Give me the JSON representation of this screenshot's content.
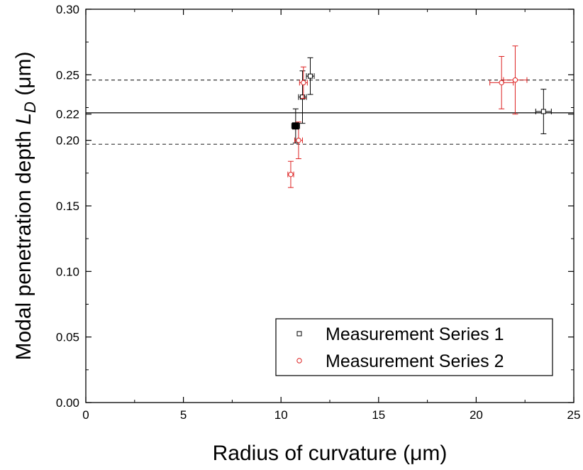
{
  "chart_data": {
    "type": "scatter",
    "xlabel": "Radius of curvature (μm)",
    "ylabel_main": "Modal penetration depth ",
    "ylabel_symbol": "L",
    "ylabel_subscript": "D",
    "ylabel_unit": " (μm)",
    "xlim": [
      0,
      25
    ],
    "ylim": [
      0,
      0.3
    ],
    "x_ticks": [
      0,
      5,
      10,
      15,
      20,
      25
    ],
    "x_tick_labels": [
      "0",
      "5",
      "10",
      "15",
      "20",
      "25"
    ],
    "y_ticks": [
      0.0,
      0.05,
      0.1,
      0.15,
      0.2,
      0.22,
      0.25,
      0.3
    ],
    "y_tick_labels": [
      "0.00",
      "0.05",
      "0.10",
      "0.15",
      "0.20",
      "0.22",
      "0.25",
      "0.30"
    ],
    "mean_line": 0.221,
    "dashed_lines": [
      0.197,
      0.246
    ],
    "grid": false,
    "legend_position": "bottom-right",
    "series": [
      {
        "name": "Measurement Series 1",
        "color": "#000000",
        "marker": "square",
        "points": [
          {
            "x": 10.75,
            "y": 0.211,
            "xerr": 0.2,
            "yerr": 0.013
          },
          {
            "x": 11.1,
            "y": 0.233,
            "xerr": 0.2,
            "yerr": 0.02
          },
          {
            "x": 11.5,
            "y": 0.249,
            "xerr": 0.2,
            "yerr": 0.014
          },
          {
            "x": 23.45,
            "y": 0.222,
            "xerr": 0.4,
            "yerr": 0.017
          }
        ]
      },
      {
        "name": "Measurement Series 2",
        "color": "#dd2222",
        "marker": "circle",
        "points": [
          {
            "x": 10.5,
            "y": 0.174,
            "xerr": 0.15,
            "yerr": 0.01
          },
          {
            "x": 10.9,
            "y": 0.2,
            "xerr": 0.2,
            "yerr": 0.014
          },
          {
            "x": 11.15,
            "y": 0.244,
            "xerr": 0.2,
            "yerr": 0.012
          },
          {
            "x": 21.3,
            "y": 0.244,
            "xerr": 0.6,
            "yerr": 0.02
          },
          {
            "x": 22.0,
            "y": 0.246,
            "xerr": 0.6,
            "yerr": 0.026
          }
        ]
      }
    ],
    "highlight_point": {
      "x": 10.75,
      "y": 0.211,
      "color": "#000000",
      "marker": "filled-square"
    }
  }
}
